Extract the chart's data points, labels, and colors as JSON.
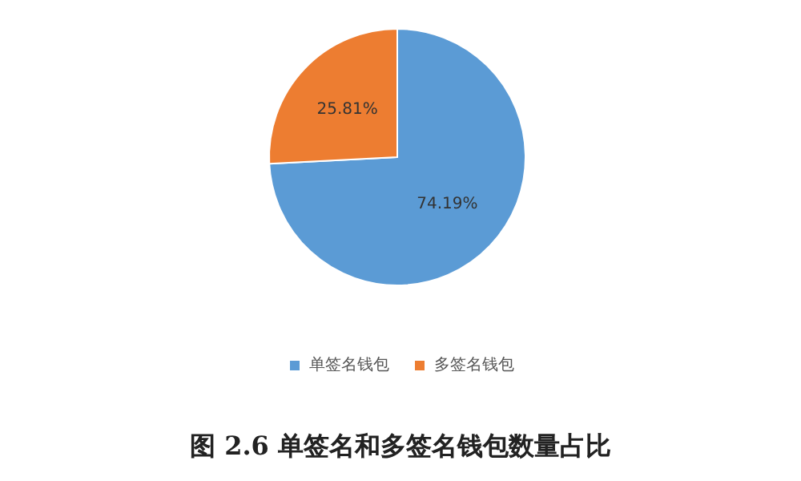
{
  "chart_data": {
    "type": "pie",
    "categories": [
      "单签名钱包",
      "多签名钱包"
    ],
    "values": [
      74.19,
      25.81
    ],
    "colors": [
      "#5b9bd5",
      "#ed7d31"
    ],
    "value_labels": [
      "74.19%",
      "25.81%"
    ],
    "legend": "bottom",
    "annotations": [
      "图 2.6 单签名和多签名钱包数量占比"
    ]
  }
}
